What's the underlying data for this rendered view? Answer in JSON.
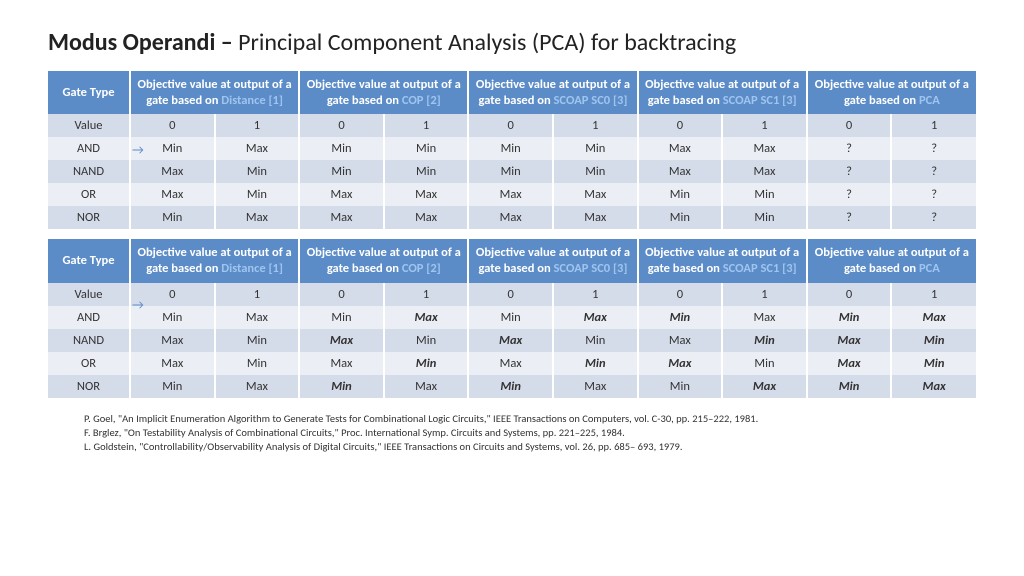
{
  "title_bold": "Modus Operandi – ",
  "title_rest": "Principal Component Analysis (PCA) for backtracing",
  "header": {
    "gate": "Gate Type",
    "col_prefix": "Objective value at output of a gate based on ",
    "metrics": [
      {
        "link": "Distance [1]"
      },
      {
        "link": "COP [2]"
      },
      {
        "link": "SCOAP SC0 [3]"
      },
      {
        "link": "SCOAP SC1 [3]"
      },
      {
        "link": "PCA"
      }
    ]
  },
  "value_label": "Value",
  "sub_vals": [
    "0",
    "1",
    "0",
    "1",
    "0",
    "1",
    "0",
    "1",
    "0",
    "1"
  ],
  "table1": {
    "rows": [
      {
        "g": "AND",
        "c": [
          "Min",
          "Max",
          "Min",
          "Min",
          "Min",
          "Min",
          "Max",
          "Max",
          "?",
          "?"
        ]
      },
      {
        "g": "NAND",
        "c": [
          "Max",
          "Min",
          "Min",
          "Min",
          "Min",
          "Min",
          "Max",
          "Max",
          "?",
          "?"
        ]
      },
      {
        "g": "OR",
        "c": [
          "Max",
          "Min",
          "Max",
          "Max",
          "Max",
          "Max",
          "Min",
          "Min",
          "?",
          "?"
        ]
      },
      {
        "g": "NOR",
        "c": [
          "Min",
          "Max",
          "Max",
          "Max",
          "Max",
          "Max",
          "Min",
          "Min",
          "?",
          "?"
        ]
      }
    ]
  },
  "table2": {
    "rows": [
      {
        "g": "AND",
        "c": [
          "Min",
          "Max",
          "Min",
          "Max",
          "Min",
          "Max",
          "Min",
          "Max",
          "Min",
          "Max"
        ],
        "em": [
          0,
          0,
          0,
          1,
          0,
          1,
          1,
          0,
          1,
          1
        ]
      },
      {
        "g": "NAND",
        "c": [
          "Max",
          "Min",
          "Max",
          "Min",
          "Max",
          "Min",
          "Max",
          "Min",
          "Max",
          "Min"
        ],
        "em": [
          0,
          0,
          1,
          0,
          1,
          0,
          0,
          1,
          1,
          1
        ]
      },
      {
        "g": "OR",
        "c": [
          "Max",
          "Min",
          "Max",
          "Min",
          "Max",
          "Min",
          "Max",
          "Min",
          "Max",
          "Min"
        ],
        "em": [
          0,
          0,
          0,
          1,
          0,
          1,
          1,
          0,
          1,
          1
        ]
      },
      {
        "g": "NOR",
        "c": [
          "Min",
          "Max",
          "Min",
          "Max",
          "Min",
          "Max",
          "Min",
          "Max",
          "Min",
          "Max"
        ],
        "em": [
          0,
          0,
          1,
          0,
          1,
          0,
          0,
          1,
          1,
          1
        ]
      }
    ]
  },
  "refs": [
    "P. Goel, \"An Implicit Enumeration Algorithm to Generate Tests for Combinational Logic Circuits,\" IEEE Transactions on Computers, vol. C-30, pp. 215–222, 1981.",
    "F. Brglez, \"On Testability Analysis of Combinational Circuits,\" Proc. International Symp. Circuits and Systems, pp. 221–225, 1984.",
    "L. Goldstein, \"Controllability/Observability Analysis of Digital Circuits,\" IEEE Transactions on Circuits and Systems, vol. 26, pp. 685– 693, 1979."
  ],
  "colors": {
    "header_bg": "#5b8cc8",
    "header_fg": "#ffffff",
    "link_fg": "#9fc5ef",
    "row_a": "#d4dbe9",
    "row_b": "#ebeef5"
  }
}
